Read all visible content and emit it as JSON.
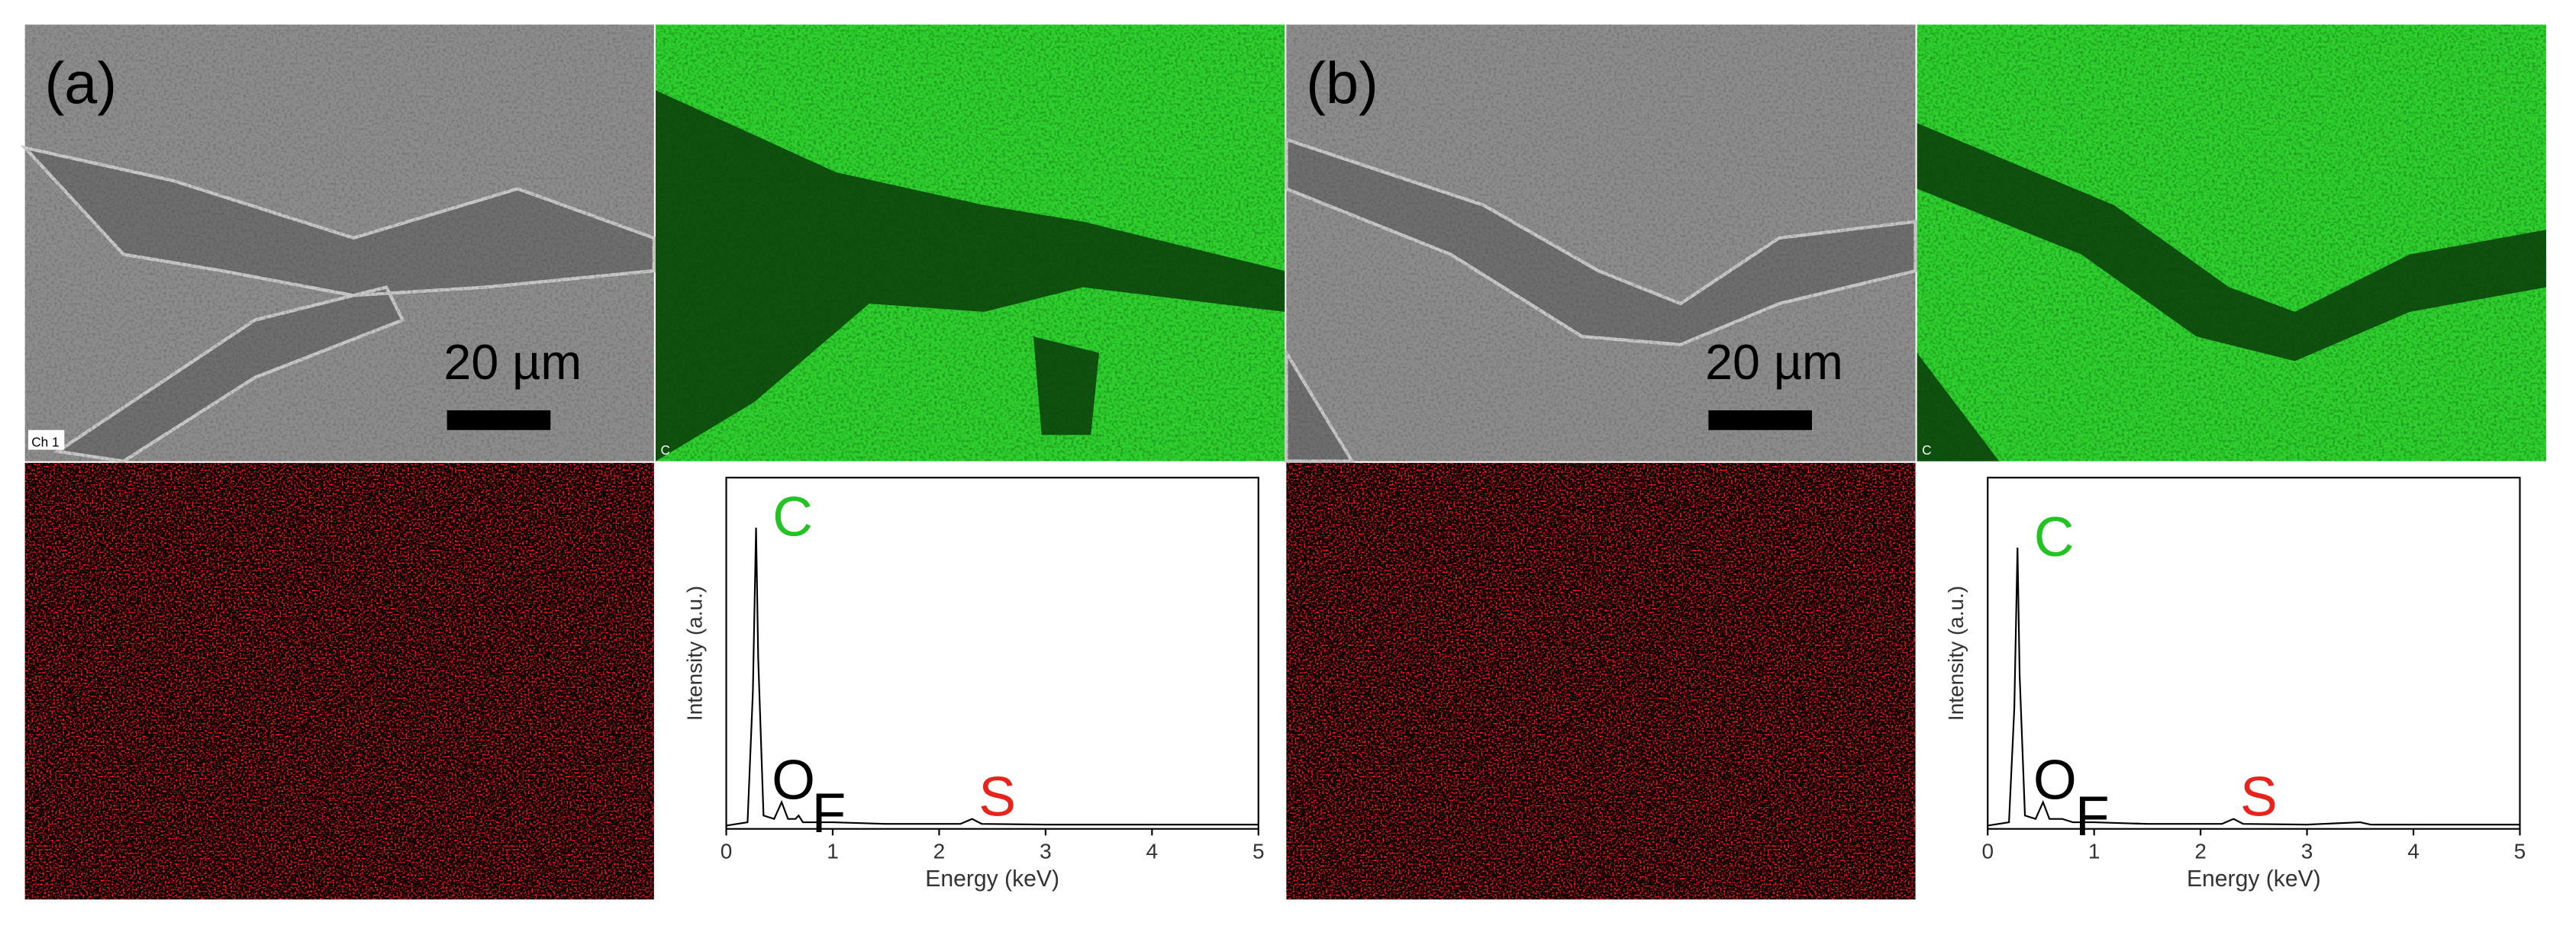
{
  "panels": [
    {
      "label": "(a)",
      "scale_bar": "20 µm",
      "sem_channel": "Ch 1",
      "map_label": "C",
      "spectrum": {
        "type": "line",
        "y_label": "Intensity (a.u.)",
        "x_label": "Energy (keV)",
        "xlim": [
          0,
          5
        ],
        "xticks": [
          0,
          1,
          2,
          3,
          4,
          5
        ],
        "ylim": [
          0,
          100
        ],
        "x": [
          0,
          0.2,
          0.25,
          0.28,
          0.3,
          0.35,
          0.45,
          0.52,
          0.58,
          0.65,
          0.68,
          0.72,
          0.8,
          1.0,
          1.5,
          2.2,
          2.31,
          2.4,
          3,
          4,
          5
        ],
        "values": [
          0,
          1,
          40,
          89,
          50,
          3,
          2,
          7,
          2,
          2,
          3,
          1,
          1,
          1,
          0.5,
          0.5,
          2,
          0.5,
          0.3,
          0.3,
          0.3
        ],
        "color": "#000000",
        "peaks": [
          {
            "label": "C",
            "x": 0.28,
            "color": "#22c322"
          },
          {
            "label": "O",
            "x": 0.52,
            "color": "#000000"
          },
          {
            "label": "F",
            "x": 0.68,
            "color": "#000000"
          },
          {
            "label": "S",
            "x": 2.31,
            "color": "#e8231c"
          }
        ]
      }
    },
    {
      "label": "(b)",
      "scale_bar": "20 µm",
      "sem_channel": null,
      "map_label": "C",
      "spectrum": {
        "type": "line",
        "y_label": "Intensity (a.u.)",
        "x_label": "Energy (keV)",
        "xlim": [
          0,
          5
        ],
        "xticks": [
          0,
          1,
          2,
          3,
          4,
          5
        ],
        "ylim": [
          0,
          100
        ],
        "x": [
          0,
          0.2,
          0.25,
          0.28,
          0.3,
          0.35,
          0.45,
          0.52,
          0.58,
          0.65,
          0.7,
          0.8,
          1.0,
          1.5,
          2.2,
          2.31,
          2.4,
          3,
          3.5,
          3.6,
          4,
          5
        ],
        "values": [
          0,
          1,
          35,
          83,
          45,
          3,
          2,
          7,
          2,
          2,
          2,
          1,
          1,
          0.5,
          0.5,
          2,
          0.5,
          0.3,
          1,
          0.3,
          0.3,
          0.3
        ],
        "color": "#000000",
        "peaks": [
          {
            "label": "C",
            "x": 0.28,
            "color": "#22c322"
          },
          {
            "label": "O",
            "x": 0.52,
            "color": "#000000"
          },
          {
            "label": "F",
            "x": 0.7,
            "color": "#000000"
          },
          {
            "label": "S",
            "x": 2.31,
            "color": "#e8231c"
          }
        ]
      }
    }
  ]
}
